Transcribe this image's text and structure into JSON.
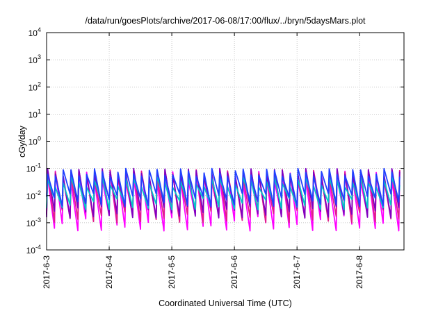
{
  "chart_data": {
    "type": "line",
    "title": "/data/run/goesPlots/archive/2017-06-08/17:00/flux/../bryn/5daysMars.plot",
    "xlabel": "Coordinated Universal Time (UTC)",
    "ylabel": "cGy/day",
    "yscale": "log",
    "ylim": [
      0.0001,
      10000
    ],
    "y_ticks": [
      {
        "value": 0.0001,
        "base": "10",
        "exp": "-4"
      },
      {
        "value": 0.001,
        "base": "10",
        "exp": "-3"
      },
      {
        "value": 0.01,
        "base": "10",
        "exp": "-2"
      },
      {
        "value": 0.1,
        "base": "10",
        "exp": "-1"
      },
      {
        "value": 1,
        "base": "10",
        "exp": "0"
      },
      {
        "value": 10,
        "base": "10",
        "exp": "1"
      },
      {
        "value": 100,
        "base": "10",
        "exp": "2"
      },
      {
        "value": 1000,
        "base": "10",
        "exp": "3"
      },
      {
        "value": 10000,
        "base": "10",
        "exp": "4"
      }
    ],
    "xlim": [
      "2017-06-03 00:00",
      "2017-06-08 17:00"
    ],
    "x_ticks": [
      "2017-6-3",
      "2017-6-4",
      "2017-6-5",
      "2017-6-6",
      "2017-6-7",
      "2017-6-8"
    ],
    "grid": true,
    "legend": "none",
    "sawtooth_period_hours": 3,
    "series": [
      {
        "color": "#ff00ff",
        "peak_range": [
          0.03,
          0.08
        ],
        "trough_range": [
          0.0005,
          0.002
        ]
      },
      {
        "color": "#e0208a",
        "peak_range": [
          0.04,
          0.09
        ],
        "trough_range": [
          0.001,
          0.003
        ]
      },
      {
        "color": "#8000c0",
        "peak_range": [
          0.05,
          0.1
        ],
        "trough_range": [
          0.0015,
          0.004
        ]
      },
      {
        "color": "#00c8c8",
        "peak_range": [
          0.02,
          0.05
        ],
        "trough_range": [
          0.003,
          0.008
        ]
      },
      {
        "color": "#2040ff",
        "peak_range": [
          0.05,
          0.1
        ],
        "trough_range": [
          0.004,
          0.012
        ]
      }
    ]
  }
}
